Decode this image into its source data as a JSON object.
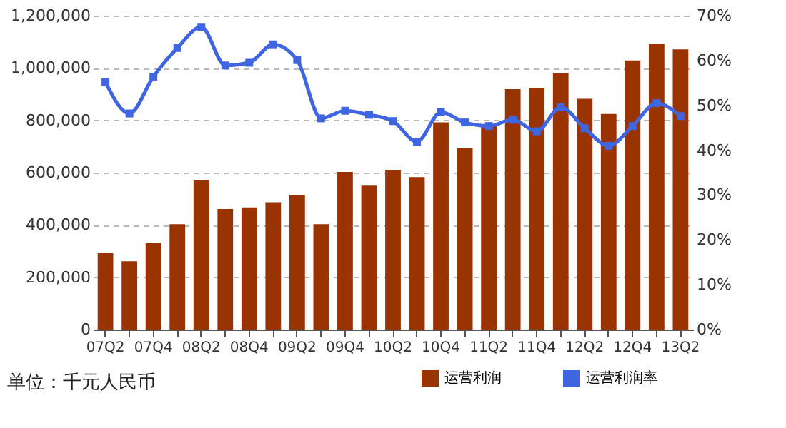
{
  "chart_data": {
    "type": "bar",
    "categories": [
      "07Q2",
      null,
      "07Q4",
      null,
      "08Q2",
      null,
      "08Q4",
      null,
      "09Q2",
      null,
      "09Q4",
      null,
      "10Q2",
      null,
      "10Q4",
      null,
      "11Q2",
      null,
      "11Q4",
      null,
      "12Q2",
      null,
      "12Q4",
      null,
      "13Q2"
    ],
    "series": [
      {
        "name": "运营利润",
        "color": "#993300",
        "values": [
          292000,
          261000,
          330000,
          403000,
          570000,
          461000,
          467000,
          487000,
          514000,
          403000,
          603000,
          550000,
          610000,
          583000,
          792000,
          694000,
          779000,
          919000,
          924000,
          979000,
          882000,
          824000,
          1029000,
          1093000,
          1071000
        ]
      },
      {
        "name": "运营利润率",
        "color": "#3f66e0",
        "type": "line",
        "axis": "y2",
        "marker": "square",
        "line_style": "solid",
        "values": [
          55.2,
          48.2,
          56.4,
          62.8,
          67.5,
          58.9,
          59.5,
          63.6,
          60.1,
          47.1,
          48.8,
          47.9,
          46.5,
          41.9,
          48.5,
          46.2,
          45.4,
          46.8,
          44.2,
          49.6,
          44.9,
          41.0,
          45.4,
          50.5,
          47.6
        ]
      }
    ],
    "ylim": [
      0,
      1200000
    ],
    "yticks": [
      0,
      {
        "value": 200000,
        "label": "200,000"
      },
      {
        "value": 400000,
        "label": "400,000"
      },
      {
        "value": 600000,
        "label": "600,000"
      },
      {
        "value": 800000,
        "label": "800,000"
      },
      {
        "value": 1000000,
        "label": "1,000,000"
      },
      {
        "value": 1200000,
        "label": "1,200,000"
      }
    ],
    "y2lim": [
      0,
      70
    ],
    "y2ticks": [
      {
        "value": 0,
        "label": "0%"
      },
      {
        "value": 10,
        "label": "10%"
      },
      {
        "value": 20,
        "label": "20%"
      },
      {
        "value": 30,
        "label": "30%"
      },
      {
        "value": 40,
        "label": "40%"
      },
      {
        "value": 50,
        "label": "50%"
      },
      {
        "value": 60,
        "label": "60%"
      },
      {
        "value": 70,
        "label": "70%"
      }
    ],
    "grid": "y",
    "legend": "bottom right",
    "annotations": [
      "单位：千元人民币"
    ]
  }
}
